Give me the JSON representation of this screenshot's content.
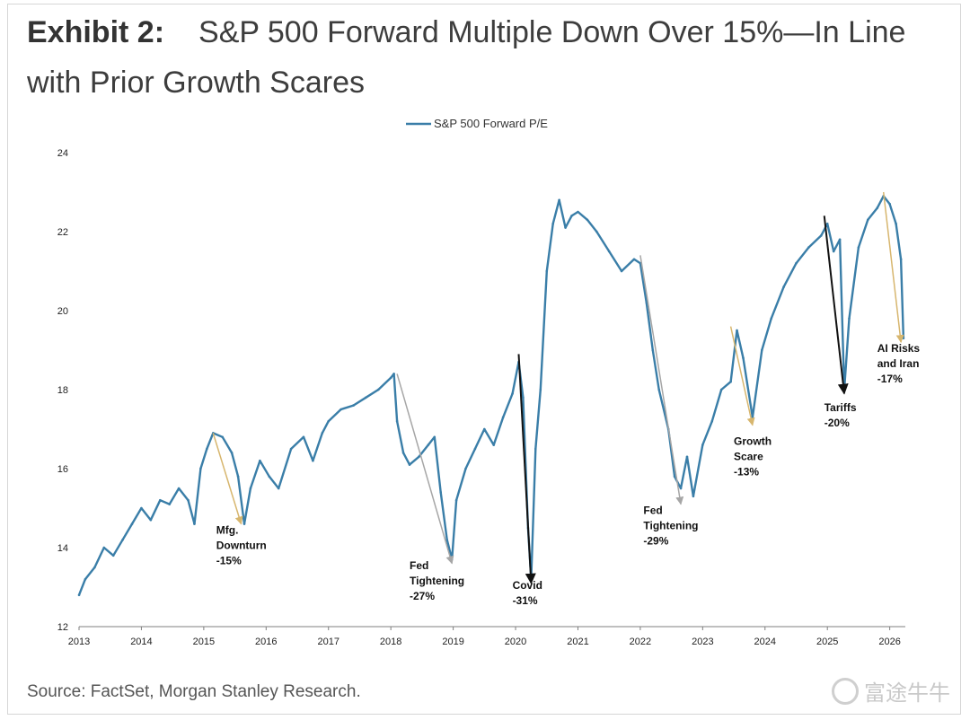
{
  "header": {
    "label": "Exhibit 2:",
    "title_line1": "S&P 500 Forward Multiple Down Over 15%—In Line",
    "title_line2": "with Prior Growth Scares"
  },
  "footer": {
    "source": "Source: FactSet, Morgan Stanley Research."
  },
  "watermark": {
    "text": "富途牛牛",
    "logo_icon": "bull-logo-icon"
  },
  "colors": {
    "line": "#3a7ea8",
    "arrow_gold": "#d7b66e",
    "arrow_gray": "#a6a6a6",
    "arrow_black": "#111111",
    "axis": "#7f7f7f"
  },
  "chart_data": {
    "type": "line",
    "legend": "S&P 500 Forward P/E",
    "legend_position": "top-center",
    "grid": false,
    "xlim": [
      2013,
      2026.25
    ],
    "ylim": [
      12,
      24
    ],
    "x_ticks": [
      "2013",
      "2014",
      "2015",
      "2016",
      "2017",
      "2018",
      "2019",
      "2020",
      "2021",
      "2022",
      "2023",
      "2024",
      "2025",
      "2026"
    ],
    "y_ticks": [
      "12",
      "14",
      "16",
      "18",
      "20",
      "22",
      "24"
    ],
    "series": [
      {
        "name": "S&P 500 Forward P/E",
        "x": [
          2013.0,
          2013.1,
          2013.25,
          2013.4,
          2013.55,
          2013.7,
          2013.85,
          2014.0,
          2014.15,
          2014.3,
          2014.45,
          2014.6,
          2014.75,
          2014.85,
          2014.95,
          2015.05,
          2015.15,
          2015.3,
          2015.45,
          2015.55,
          2015.65,
          2015.75,
          2015.9,
          2016.05,
          2016.2,
          2016.4,
          2016.6,
          2016.75,
          2016.9,
          2017.0,
          2017.2,
          2017.4,
          2017.6,
          2017.8,
          2018.0,
          2018.05,
          2018.1,
          2018.2,
          2018.3,
          2018.45,
          2018.6,
          2018.7,
          2018.8,
          2018.9,
          2018.98,
          2019.05,
          2019.2,
          2019.35,
          2019.5,
          2019.65,
          2019.8,
          2019.95,
          2020.05,
          2020.12,
          2020.2,
          2020.25,
          2020.32,
          2020.4,
          2020.5,
          2020.6,
          2020.7,
          2020.8,
          2020.9,
          2021.0,
          2021.15,
          2021.3,
          2021.5,
          2021.7,
          2021.9,
          2022.0,
          2022.1,
          2022.2,
          2022.3,
          2022.45,
          2022.55,
          2022.65,
          2022.75,
          2022.85,
          2023.0,
          2023.15,
          2023.3,
          2023.45,
          2023.55,
          2023.65,
          2023.8,
          2023.95,
          2024.1,
          2024.3,
          2024.5,
          2024.7,
          2024.9,
          2025.0,
          2025.1,
          2025.2,
          2025.27,
          2025.35,
          2025.5,
          2025.65,
          2025.8,
          2025.9,
          2026.0,
          2026.1,
          2026.18,
          2026.22
        ],
        "y": [
          12.8,
          13.2,
          13.5,
          14.0,
          13.8,
          14.2,
          14.6,
          15.0,
          14.7,
          15.2,
          15.1,
          15.5,
          15.2,
          14.6,
          16.0,
          16.5,
          16.9,
          16.8,
          16.4,
          15.8,
          14.6,
          15.5,
          16.2,
          15.8,
          15.5,
          16.5,
          16.8,
          16.2,
          16.9,
          17.2,
          17.5,
          17.6,
          17.8,
          18.0,
          18.3,
          18.4,
          17.2,
          16.4,
          16.1,
          16.3,
          16.6,
          16.8,
          15.4,
          14.2,
          13.7,
          15.2,
          16.0,
          16.5,
          17.0,
          16.6,
          17.3,
          17.9,
          18.7,
          17.8,
          14.5,
          13.2,
          16.5,
          18.0,
          21.0,
          22.2,
          22.8,
          22.1,
          22.4,
          22.5,
          22.3,
          22.0,
          21.5,
          21.0,
          21.3,
          21.2,
          20.2,
          19.0,
          18.0,
          17.0,
          15.8,
          15.5,
          16.3,
          15.3,
          16.6,
          17.2,
          18.0,
          18.2,
          19.5,
          18.8,
          17.3,
          19.0,
          19.8,
          20.6,
          21.2,
          21.6,
          21.9,
          22.2,
          21.5,
          21.8,
          18.0,
          19.8,
          21.6,
          22.3,
          22.6,
          22.9,
          22.7,
          22.2,
          21.3,
          19.3
        ]
      }
    ],
    "annotations": [
      {
        "lines": [
          "Mfg.",
          "Downturn",
          "-15%"
        ],
        "from": [
          2015.15,
          16.9
        ],
        "to": [
          2015.6,
          14.6
        ],
        "arrow": "gold",
        "text_at": [
          2015.2,
          14.35
        ]
      },
      {
        "lines": [
          "Fed",
          "Tightening",
          "-27%"
        ],
        "from": [
          2018.1,
          18.4
        ],
        "to": [
          2018.98,
          13.6
        ],
        "arrow": "gray",
        "text_at": [
          2018.3,
          13.45
        ]
      },
      {
        "lines": [
          "Covid",
          "-31%"
        ],
        "from": [
          2020.05,
          18.9
        ],
        "to": [
          2020.25,
          13.1
        ],
        "arrow": "black",
        "text_at": [
          2019.95,
          12.95
        ]
      },
      {
        "lines": [
          "Fed",
          "Tightening",
          "-29%"
        ],
        "from": [
          2022.0,
          21.4
        ],
        "to": [
          2022.65,
          15.1
        ],
        "arrow": "gray",
        "text_at": [
          2022.05,
          14.85
        ]
      },
      {
        "lines": [
          "Growth",
          "Scare",
          "-13%"
        ],
        "from": [
          2023.45,
          19.6
        ],
        "to": [
          2023.8,
          17.1
        ],
        "arrow": "gold",
        "text_at": [
          2023.5,
          16.6
        ]
      },
      {
        "lines": [
          "Tariffs",
          "-20%"
        ],
        "from": [
          2024.95,
          22.4
        ],
        "to": [
          2025.27,
          17.9
        ],
        "arrow": "black",
        "text_at": [
          2024.95,
          17.45
        ]
      },
      {
        "lines": [
          "AI Risks",
          "and Iran",
          "-17%"
        ],
        "from": [
          2025.9,
          23.0
        ],
        "to": [
          2026.18,
          19.2
        ],
        "arrow": "gold",
        "text_at": [
          2025.8,
          18.95
        ]
      }
    ]
  }
}
